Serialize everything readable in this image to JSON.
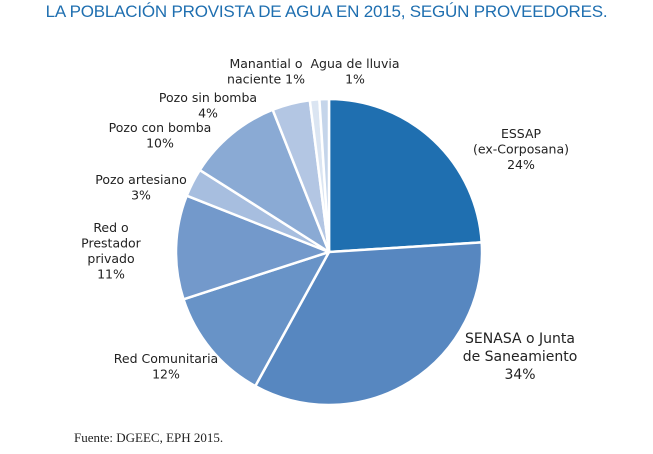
{
  "chart_data": {
    "type": "pie",
    "title": "LA POBLACIÓN PROVISTA DE AGUA EN 2015, SEGÚN PROVEEDORES.",
    "source": "Fuente: DGEEC, EPH 2015.",
    "start": "top, clockwise",
    "slices": [
      {
        "name": "ESSAP (ex-Corposana)",
        "label_lines": [
          "ESSAP",
          "(ex-Corposana)",
          "24%"
        ],
        "value": 24,
        "color": "#1f6fb0"
      },
      {
        "name": "SENASA o Junta de Saneamiento",
        "label_lines": [
          "SENASA o Junta",
          "de Saneamiento",
          "34%"
        ],
        "value": 34,
        "color": "#5787c0"
      },
      {
        "name": "Red Comunitaria",
        "label_lines": [
          "Red Comunitaria",
          "12%"
        ],
        "value": 12,
        "color": "#6893c7"
      },
      {
        "name": "Red o Prestador privado",
        "label_lines": [
          "Red o",
          "Prestador",
          "privado",
          "11%"
        ],
        "value": 11,
        "color": "#7399cb"
      },
      {
        "name": "Pozo artesiano",
        "label_lines": [
          "Pozo artesiano",
          "3%"
        ],
        "value": 3,
        "color": "#a7bedf"
      },
      {
        "name": "Pozo con bomba",
        "label_lines": [
          "Pozo con bomba",
          "10%"
        ],
        "value": 10,
        "color": "#8aaad4"
      },
      {
        "name": "Pozo sin bomba",
        "label_lines": [
          "Pozo sin bomba",
          "4%"
        ],
        "value": 4,
        "color": "#b3c6e3"
      },
      {
        "name": "Manantial o naciente",
        "label_lines": [
          "Manantial o",
          "naciente 1%"
        ],
        "value": 1,
        "color": "#dbe5f2"
      },
      {
        "name": "Agua de lluvia",
        "label_lines": [
          "Agua de lluvia",
          "1%"
        ],
        "value": 1,
        "color": "#c5d5ea"
      }
    ]
  }
}
